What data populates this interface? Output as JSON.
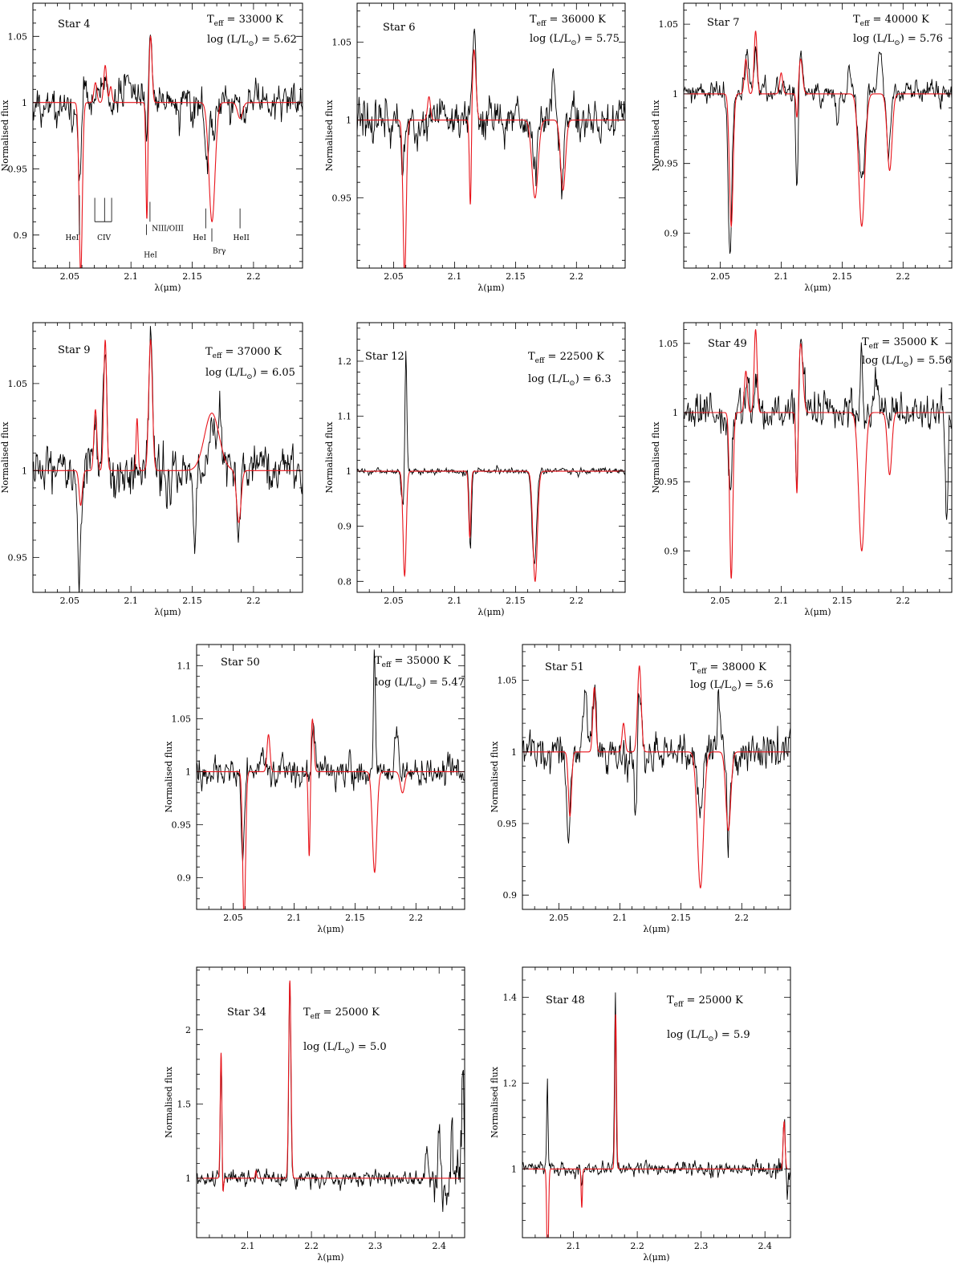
{
  "figure_title": "",
  "colors": {
    "observed": "#000000",
    "model": "#e8141b",
    "axes": "#000000"
  },
  "chart_data": [
    {
      "type": "line",
      "star": "Star 4",
      "teff": "33000",
      "teff_unit": "K",
      "logL": "5.62",
      "xlabel": "λ(μm)",
      "ylabel": "Normalised flux",
      "xlim": [
        2.02,
        2.24
      ],
      "ylim": [
        0.875,
        1.075
      ],
      "xticks": [
        2.05,
        2.1,
        2.15,
        2.2
      ],
      "xtick_labels": [
        "2.05",
        "2.1",
        "2.15",
        "2.2"
      ],
      "yticks": [
        0.9,
        0.95,
        1.0,
        1.05
      ],
      "ytick_labels": [
        "0.9",
        "0.95",
        "1",
        "1.05"
      ],
      "noise": 0.011,
      "seed": 4,
      "obs_lines": [
        [
          2.058,
          -0.055,
          0.0015
        ],
        [
          2.062,
          0.012,
          0.002
        ],
        [
          2.074,
          0.012,
          0.002
        ],
        [
          2.079,
          0.02,
          0.0015
        ],
        [
          2.097,
          0.018,
          0.002
        ],
        [
          2.113,
          -0.03,
          0.001
        ],
        [
          2.116,
          0.055,
          0.0015
        ],
        [
          2.145,
          0.012,
          0.002
        ],
        [
          2.162,
          -0.04,
          0.0015
        ],
        [
          2.167,
          -0.025,
          0.0015
        ],
        [
          2.19,
          -0.012,
          0.0015
        ]
      ],
      "model_lines": [
        [
          2.059,
          -0.13,
          0.0013
        ],
        [
          2.071,
          0.015,
          0.0012
        ],
        [
          2.079,
          0.028,
          0.0012
        ],
        [
          2.0835,
          0.012,
          0.001
        ],
        [
          2.113,
          -0.09,
          0.0008
        ],
        [
          2.116,
          0.05,
          0.0012
        ],
        [
          2.1661,
          -0.09,
          0.0025
        ],
        [
          2.189,
          -0.012,
          0.002
        ]
      ],
      "line_ids": [
        {
          "label": "HeI",
          "x": 2.058,
          "y_top": 0.93,
          "y_bottom": 0.9,
          "text_y": 0.898,
          "text_x": 2.052
        },
        {
          "label": "CIV",
          "x": 2.078,
          "y_top": 0.92,
          "y_bottom": 0.905,
          "text_y": 0.898,
          "text_x": 2.078
        },
        {
          "label": "NIII/OIII",
          "x": 2.1155,
          "y_top": 0.925,
          "y_bottom": 0.91,
          "text_y": 0.905,
          "text_x": 2.13
        },
        {
          "label": "HeI",
          "x": 2.1127,
          "y_top": 0.908,
          "y_bottom": 0.9,
          "text_y": 0.885,
          "text_x": 2.116
        },
        {
          "label": "HeI",
          "x": 2.161,
          "y_top": 0.92,
          "y_bottom": 0.905,
          "text_y": 0.898,
          "text_x": 2.156
        },
        {
          "label": "Brγ",
          "x": 2.166,
          "y_top": 0.905,
          "y_bottom": 0.895,
          "text_y": 0.888,
          "text_x": 2.172
        },
        {
          "label": "HeII",
          "x": 2.189,
          "y_top": 0.92,
          "y_bottom": 0.905,
          "text_y": 0.898,
          "text_x": 2.19
        }
      ],
      "civ_ticks": [
        2.0705,
        2.0785,
        2.0842
      ]
    },
    {
      "type": "line",
      "star": "Star 6",
      "teff": "36000",
      "teff_unit": "K",
      "logL": "5.75",
      "xlabel": "λ(μm)",
      "ylabel": "Normalised flux",
      "xlim": [
        2.02,
        2.24
      ],
      "ylim": [
        0.905,
        1.075
      ],
      "xticks": [
        2.05,
        2.1,
        2.15,
        2.2
      ],
      "xtick_labels": [
        "2.05",
        "2.1",
        "2.15",
        "2.2"
      ],
      "yticks": [
        0.95,
        1.0,
        1.05
      ],
      "ytick_labels": [
        "0.95",
        "1",
        "1.05"
      ],
      "noise": 0.011,
      "seed": 6,
      "obs_lines": [
        [
          2.058,
          -0.035,
          0.0015
        ],
        [
          2.116,
          0.055,
          0.0015
        ],
        [
          2.166,
          -0.03,
          0.002
        ],
        [
          2.181,
          0.035,
          0.0012
        ],
        [
          2.188,
          -0.04,
          0.0015
        ],
        [
          2.196,
          0.018,
          0.002
        ]
      ],
      "model_lines": [
        [
          2.059,
          -0.1,
          0.0013
        ],
        [
          2.079,
          0.015,
          0.0012
        ],
        [
          2.113,
          -0.06,
          0.0008
        ],
        [
          2.116,
          0.045,
          0.0015
        ],
        [
          2.166,
          -0.05,
          0.0025
        ],
        [
          2.189,
          -0.045,
          0.002
        ]
      ]
    },
    {
      "type": "line",
      "star": "Star 7",
      "teff": "40000",
      "teff_unit": "K",
      "logL": "5.76",
      "xlabel": "λ(μm)",
      "ylabel": "Normalised flux",
      "xlim": [
        2.02,
        2.24
      ],
      "ylim": [
        0.875,
        1.065
      ],
      "xticks": [
        2.05,
        2.1,
        2.15,
        2.2
      ],
      "xtick_labels": [
        "2.05",
        "2.1",
        "2.15",
        "2.2"
      ],
      "yticks": [
        0.9,
        0.95,
        1.0,
        1.05
      ],
      "ytick_labels": [
        "0.9",
        "0.95",
        "1",
        "1.05"
      ],
      "noise": 0.006,
      "seed": 7,
      "obs_lines": [
        [
          2.058,
          -0.115,
          0.0015
        ],
        [
          2.072,
          0.03,
          0.0015
        ],
        [
          2.079,
          0.03,
          0.0015
        ],
        [
          2.086,
          0.012,
          0.001
        ],
        [
          2.113,
          -0.07,
          0.001
        ],
        [
          2.116,
          0.032,
          0.0015
        ],
        [
          2.1325,
          -0.012,
          0.001
        ],
        [
          2.146,
          -0.022,
          0.001
        ],
        [
          2.156,
          0.02,
          0.0015
        ],
        [
          2.165,
          -0.05,
          0.002
        ],
        [
          2.168,
          -0.035,
          0.0015
        ],
        [
          2.181,
          0.032,
          0.0015
        ],
        [
          2.188,
          -0.05,
          0.0015
        ]
      ],
      "model_lines": [
        [
          2.059,
          -0.095,
          0.0015
        ],
        [
          2.071,
          0.025,
          0.0012
        ],
        [
          2.079,
          0.045,
          0.0012
        ],
        [
          2.1,
          0.015,
          0.0012
        ],
        [
          2.113,
          -0.02,
          0.0008
        ],
        [
          2.116,
          0.025,
          0.0015
        ],
        [
          2.1661,
          -0.095,
          0.0025
        ],
        [
          2.189,
          -0.055,
          0.002
        ]
      ]
    },
    {
      "type": "line",
      "star": "Star 9",
      "teff": "37000",
      "teff_unit": "K",
      "logL": "6.05",
      "xlabel": "λ(μm)",
      "ylabel": "Normalised flux",
      "xlim": [
        2.02,
        2.24
      ],
      "ylim": [
        0.93,
        1.085
      ],
      "xticks": [
        2.05,
        2.1,
        2.15,
        2.2
      ],
      "xtick_labels": [
        "2.05",
        "2.1",
        "2.15",
        "2.2"
      ],
      "yticks": [
        0.95,
        1.0,
        1.05
      ],
      "ytick_labels": [
        "0.95",
        "1",
        "1.05"
      ],
      "noise": 0.011,
      "seed": 9,
      "obs_lines": [
        [
          2.058,
          -0.06,
          0.0015
        ],
        [
          2.071,
          0.03,
          0.0015
        ],
        [
          2.079,
          0.07,
          0.0015
        ],
        [
          2.116,
          0.07,
          0.0015
        ],
        [
          2.152,
          -0.045,
          0.0012
        ],
        [
          2.166,
          0.03,
          0.002
        ],
        [
          2.172,
          0.03,
          0.0015
        ],
        [
          2.188,
          -0.035,
          0.0015
        ]
      ],
      "model_lines": [
        [
          2.059,
          -0.02,
          0.0013
        ],
        [
          2.071,
          0.035,
          0.0012
        ],
        [
          2.079,
          0.075,
          0.0012
        ],
        [
          2.105,
          0.03,
          0.0008
        ],
        [
          2.116,
          0.075,
          0.0015
        ],
        [
          2.166,
          0.033,
          0.006
        ],
        [
          2.188,
          -0.03,
          0.0018
        ]
      ]
    },
    {
      "type": "line",
      "star": "Star 12",
      "teff": "22500",
      "teff_unit": "K",
      "logL": "6.3",
      "xlabel": "λ(μm)",
      "ylabel": "Normalised flux",
      "xlim": [
        2.02,
        2.24
      ],
      "ylim": [
        0.78,
        1.27
      ],
      "xticks": [
        2.05,
        2.1,
        2.15,
        2.2
      ],
      "xtick_labels": [
        "2.05",
        "2.1",
        "2.15",
        "2.2"
      ],
      "yticks": [
        0.8,
        0.9,
        1.0,
        1.1,
        1.2
      ],
      "ytick_labels": [
        "0.8",
        "0.9",
        "1",
        "1.1",
        "1.2"
      ],
      "noise": 0.005,
      "seed": 12,
      "obs_lines": [
        [
          2.058,
          -0.07,
          0.0015
        ],
        [
          2.06,
          0.24,
          0.0008
        ],
        [
          2.113,
          -0.14,
          0.0009
        ],
        [
          2.1655,
          -0.17,
          0.0018
        ]
      ],
      "model_lines": [
        [
          2.059,
          -0.19,
          0.0013
        ],
        [
          2.1125,
          -0.12,
          0.0009
        ],
        [
          2.1661,
          -0.2,
          0.0018
        ]
      ]
    },
    {
      "type": "line",
      "star": "Star 49",
      "teff": "35000",
      "teff_unit": "K",
      "logL": "5.56",
      "xlabel": "λ(μm)",
      "ylabel": "Normalised flux",
      "xlim": [
        2.02,
        2.24
      ],
      "ylim": [
        0.87,
        1.065
      ],
      "xticks": [
        2.05,
        2.1,
        2.15,
        2.2
      ],
      "xtick_labels": [
        "2.05",
        "2.1",
        "2.15",
        "2.2"
      ],
      "yticks": [
        0.9,
        0.95,
        1.0,
        1.05
      ],
      "ytick_labels": [
        "0.9",
        "0.95",
        "1",
        "1.05"
      ],
      "noise": 0.011,
      "seed": 49,
      "obs_lines": [
        [
          2.058,
          -0.05,
          0.0015
        ],
        [
          2.072,
          0.025,
          0.0015
        ],
        [
          2.079,
          0.02,
          0.0015
        ],
        [
          2.113,
          -0.07,
          0.0009
        ],
        [
          2.116,
          0.05,
          0.002
        ],
        [
          2.166,
          0.06,
          0.0008
        ],
        [
          2.178,
          0.02,
          0.002
        ],
        [
          2.236,
          -0.08,
          0.001
        ]
      ],
      "model_lines": [
        [
          2.059,
          -0.12,
          0.0013
        ],
        [
          2.071,
          0.03,
          0.0012
        ],
        [
          2.079,
          0.06,
          0.0012
        ],
        [
          2.113,
          -0.07,
          0.0009
        ],
        [
          2.116,
          0.05,
          0.0018
        ],
        [
          2.1661,
          -0.1,
          0.0025
        ],
        [
          2.189,
          -0.045,
          0.0018
        ]
      ]
    },
    {
      "type": "line",
      "star": "Star 50",
      "teff": "35000",
      "teff_unit": "K",
      "logL": "5.47",
      "xlabel": "λ(μm)",
      "ylabel": "Normalised flux",
      "xlim": [
        2.02,
        2.24
      ],
      "ylim": [
        0.87,
        1.12
      ],
      "xticks": [
        2.05,
        2.1,
        2.15,
        2.2
      ],
      "xtick_labels": [
        "2.05",
        "2.1",
        "2.15",
        "2.2"
      ],
      "yticks": [
        0.9,
        0.95,
        1.0,
        1.05,
        1.1
      ],
      "ytick_labels": [
        "0.9",
        "0.95",
        "1",
        "1.05",
        "1.1"
      ],
      "noise": 0.011,
      "seed": 50,
      "obs_lines": [
        [
          2.058,
          -0.085,
          0.0012
        ],
        [
          2.074,
          0.03,
          0.0015
        ],
        [
          2.116,
          0.04,
          0.0015
        ],
        [
          2.166,
          0.115,
          0.0008
        ],
        [
          2.184,
          0.04,
          0.0015
        ]
      ],
      "model_lines": [
        [
          2.059,
          -0.14,
          0.0012
        ],
        [
          2.079,
          0.035,
          0.0012
        ],
        [
          2.1125,
          -0.085,
          0.0008
        ],
        [
          2.115,
          0.05,
          0.0012
        ],
        [
          2.1661,
          -0.095,
          0.0018
        ],
        [
          2.189,
          -0.02,
          0.0018
        ]
      ]
    },
    {
      "type": "line",
      "star": "Star 51",
      "teff": "38000",
      "teff_unit": "K",
      "logL": "5.6",
      "xlabel": "λ(μm)",
      "ylabel": "Normalised flux",
      "xlim": [
        2.02,
        2.24
      ],
      "ylim": [
        0.89,
        1.075
      ],
      "xticks": [
        2.05,
        2.1,
        2.15,
        2.2
      ],
      "xtick_labels": [
        "2.05",
        "2.1",
        "2.15",
        "2.2"
      ],
      "yticks": [
        0.9,
        0.95,
        1.0,
        1.05
      ],
      "ytick_labels": [
        "0.9",
        "0.95",
        "1",
        "1.05"
      ],
      "noise": 0.011,
      "seed": 51,
      "obs_lines": [
        [
          2.058,
          -0.065,
          0.0015
        ],
        [
          2.072,
          0.035,
          0.0015
        ],
        [
          2.079,
          0.045,
          0.0015
        ],
        [
          2.113,
          -0.045,
          0.001
        ],
        [
          2.116,
          0.05,
          0.0015
        ],
        [
          2.166,
          -0.045,
          0.002
        ],
        [
          2.181,
          0.035,
          0.0015
        ],
        [
          2.189,
          -0.05,
          0.0015
        ]
      ],
      "model_lines": [
        [
          2.059,
          -0.045,
          0.0013
        ],
        [
          2.079,
          0.045,
          0.0012
        ],
        [
          2.103,
          0.02,
          0.0012
        ],
        [
          2.116,
          0.06,
          0.0015
        ],
        [
          2.1661,
          -0.095,
          0.0025
        ],
        [
          2.189,
          -0.055,
          0.002
        ]
      ]
    },
    {
      "type": "line",
      "star": "Star 34",
      "teff": "25000",
      "teff_unit": "K",
      "logL": "5.0",
      "xlabel": "λ(μm)",
      "ylabel": "Normalised flux",
      "xlim": [
        2.02,
        2.44
      ],
      "ylim": [
        0.6,
        2.42
      ],
      "xticks": [
        2.1,
        2.2,
        2.3,
        2.4
      ],
      "xtick_labels": [
        "2.1",
        "2.2",
        "2.3",
        "2.4"
      ],
      "yticks": [
        1.0,
        1.5,
        2.0
      ],
      "ytick_labels": [
        "1",
        "1.5",
        "2"
      ],
      "noise": 0.045,
      "seed": 34,
      "noise_ramp": {
        "from": 2.36,
        "gain": 3.0
      },
      "obs_lines": [
        [
          2.0585,
          0.9,
          0.0012
        ],
        [
          2.0605,
          -0.2,
          0.0012
        ],
        [
          2.166,
          1.35,
          0.0015
        ],
        [
          2.38,
          0.2,
          0.002
        ],
        [
          2.4,
          0.3,
          0.0015
        ],
        [
          2.42,
          0.35,
          0.0015
        ],
        [
          2.437,
          0.72,
          0.0015
        ]
      ],
      "model_lines": [
        [
          2.0585,
          0.9,
          0.0014
        ],
        [
          2.0605,
          -0.25,
          0.0012
        ],
        [
          2.1661,
          1.33,
          0.0018
        ],
        [
          2.113,
          0.05,
          0.001
        ]
      ]
    },
    {
      "type": "line",
      "star": "Star 48",
      "teff": "25000",
      "teff_unit": "K",
      "logL": "5.9",
      "xlabel": "λ(μm)",
      "ylabel": "Normalised flux",
      "xlim": [
        2.02,
        2.44
      ],
      "ylim": [
        0.84,
        1.47
      ],
      "xticks": [
        2.1,
        2.2,
        2.3,
        2.4
      ],
      "xtick_labels": [
        "2.1",
        "2.2",
        "2.3",
        "2.4"
      ],
      "yticks": [
        1.0,
        1.2,
        1.4
      ],
      "ytick_labels": [
        "1",
        "1.2",
        "1.4"
      ],
      "noise": 0.013,
      "seed": 48,
      "noise_ramp": {
        "from": 2.38,
        "gain": 2.0
      },
      "obs_lines": [
        [
          2.059,
          0.2,
          0.001
        ],
        [
          2.113,
          -0.05,
          0.001
        ],
        [
          2.1655,
          0.41,
          0.0012
        ],
        [
          2.43,
          0.1,
          0.0015
        ],
        [
          2.434,
          -0.06,
          0.001
        ]
      ],
      "model_lines": [
        [
          2.0595,
          -0.25,
          0.0013
        ],
        [
          2.113,
          -0.09,
          0.001
        ],
        [
          2.1661,
          0.36,
          0.0013
        ],
        [
          2.43,
          0.11,
          0.0015
        ]
      ]
    }
  ]
}
